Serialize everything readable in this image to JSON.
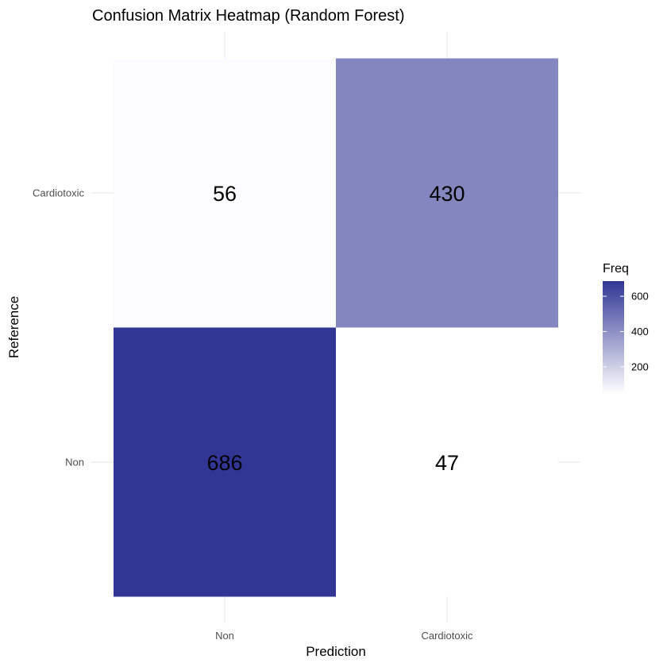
{
  "chart_data": {
    "type": "heatmap",
    "title": "Confusion Matrix Heatmap (Random Forest)",
    "xlabel": "Prediction",
    "ylabel": "Reference",
    "x_categories": [
      "Non",
      "Cardiotoxic"
    ],
    "y_categories": [
      "Non",
      "Cardiotoxic"
    ],
    "cells": [
      {
        "prediction": "Non",
        "reference": "Cardiotoxic",
        "value": 56
      },
      {
        "prediction": "Cardiotoxic",
        "reference": "Cardiotoxic",
        "value": 430
      },
      {
        "prediction": "Non",
        "reference": "Non",
        "value": 686
      },
      {
        "prediction": "Cardiotoxic",
        "reference": "Non",
        "value": 47
      }
    ],
    "legend": {
      "title": "Freq",
      "ticks": [
        200,
        400,
        600
      ],
      "range": [
        47,
        686
      ],
      "position": "right"
    },
    "colors": {
      "low": "#ffffff",
      "high": "#313695",
      "mid_example": "#8b7ec1"
    },
    "grid": true
  }
}
